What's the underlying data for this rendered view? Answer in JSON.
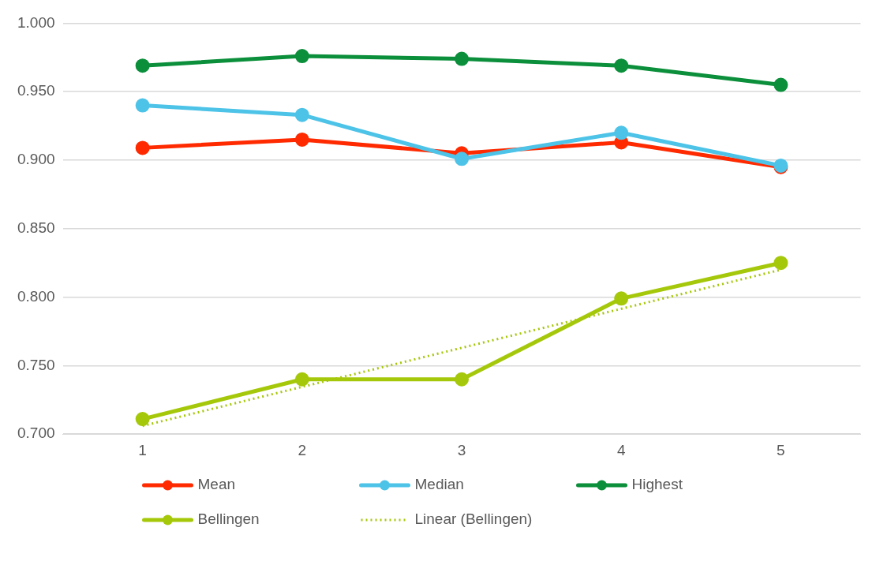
{
  "chart_data": {
    "type": "line",
    "x": [
      1,
      2,
      3,
      4,
      5
    ],
    "xlim": [
      0.5,
      5.5
    ],
    "xticks": [
      1,
      2,
      3,
      4,
      5
    ],
    "ylim": [
      0.7,
      1.0
    ],
    "yticks": [
      {
        "value": 0.7,
        "label": "0.700"
      },
      {
        "value": 0.75,
        "label": "0.750"
      },
      {
        "value": 0.8,
        "label": "0.800"
      },
      {
        "value": 0.85,
        "label": "0.850"
      },
      {
        "value": 0.9,
        "label": "0.900"
      },
      {
        "value": 0.95,
        "label": "0.950"
      },
      {
        "value": 1.0,
        "label": "1.000"
      }
    ],
    "grid": "y",
    "legend": "bottom",
    "marker": "circle",
    "line_style": "solid",
    "series": [
      {
        "name": "Mean",
        "color": "#ff2a00",
        "values": [
          0.909,
          0.915,
          0.905,
          0.913,
          0.895
        ]
      },
      {
        "name": "Median",
        "color": "#4dc3e8",
        "values": [
          0.94,
          0.933,
          0.901,
          0.92,
          0.896
        ]
      },
      {
        "name": "Highest",
        "color": "#0b8f3b",
        "values": [
          0.969,
          0.976,
          0.974,
          0.969,
          0.955
        ]
      },
      {
        "name": "Bellingen",
        "color": "#a5c80a",
        "values": [
          0.711,
          0.74,
          0.74,
          0.799,
          0.825
        ]
      },
      {
        "name": "Linear (Bellingen)",
        "color": "#a5c80a",
        "x": [
          1,
          5
        ],
        "values": [
          0.706,
          0.82
        ],
        "marker": "none",
        "line_style": "dotted"
      }
    ]
  }
}
